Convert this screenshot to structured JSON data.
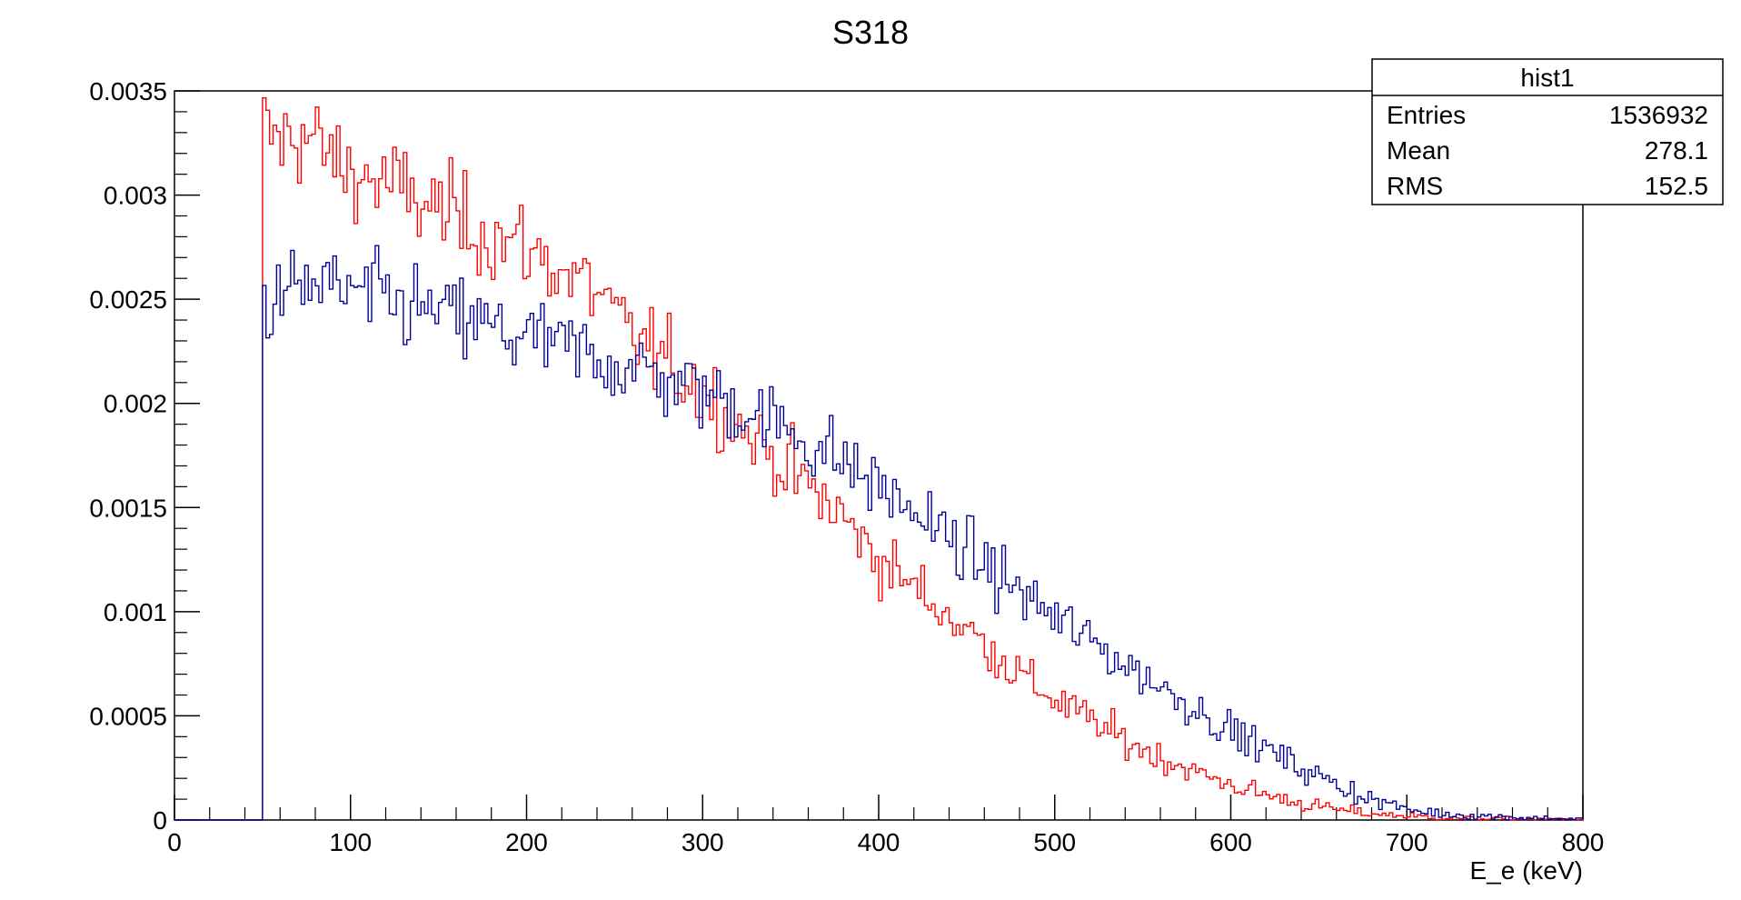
{
  "chart_data": {
    "type": "histogram",
    "title": "S318",
    "xlabel": "E_e (keV)",
    "ylabel": "",
    "xlim": [
      0,
      800
    ],
    "ylim": [
      0,
      0.0035
    ],
    "x_ticks": [
      "0",
      "100",
      "200",
      "300",
      "400",
      "500",
      "600",
      "700",
      "800"
    ],
    "y_ticks": [
      "0",
      "0.0005",
      "0.001",
      "0.0015",
      "0.002",
      "0.0025",
      "0.003",
      "0.0035"
    ],
    "grid": false,
    "bin_width": 2,
    "x_start": 50,
    "x_end": 800,
    "series": [
      {
        "color": "#ff0000",
        "points": [
          [
            50,
            0.00331
          ],
          [
            60,
            0.00325
          ],
          [
            70,
            0.0033
          ],
          [
            80,
            0.00325
          ],
          [
            90,
            0.00317
          ],
          [
            100,
            0.00311
          ],
          [
            120,
            0.00305
          ],
          [
            140,
            0.00297
          ],
          [
            160,
            0.00289
          ],
          [
            180,
            0.00281
          ],
          [
            200,
            0.00274
          ],
          [
            220,
            0.00264
          ],
          [
            240,
            0.00254
          ],
          [
            250,
            0.0024
          ],
          [
            260,
            0.00233
          ],
          [
            270,
            0.00226
          ],
          [
            280,
            0.00219
          ],
          [
            300,
            0.00206
          ],
          [
            320,
            0.0019
          ],
          [
            340,
            0.00175
          ],
          [
            360,
            0.0016
          ],
          [
            380,
            0.00145
          ],
          [
            400,
            0.00125
          ],
          [
            420,
            0.00112
          ],
          [
            440,
            0.00098
          ],
          [
            460,
            0.00085
          ],
          [
            480,
            0.0007
          ],
          [
            500,
            0.00058
          ],
          [
            520,
            0.00048
          ],
          [
            540,
            0.00038
          ],
          [
            560,
            0.0003
          ],
          [
            580,
            0.00023
          ],
          [
            600,
            0.00017
          ],
          [
            620,
            0.00012
          ],
          [
            640,
            8e-05
          ],
          [
            660,
            5e-05
          ],
          [
            680,
            3e-05
          ],
          [
            700,
            2e-05
          ],
          [
            720,
            1e-05
          ],
          [
            760,
            5e-06
          ],
          [
            800,
            3e-06
          ]
        ]
      },
      {
        "color": "#000099",
        "points": [
          [
            50,
            0.00242
          ],
          [
            60,
            0.0025
          ],
          [
            70,
            0.00255
          ],
          [
            80,
            0.00257
          ],
          [
            90,
            0.00255
          ],
          [
            100,
            0.00253
          ],
          [
            120,
            0.00249
          ],
          [
            140,
            0.00245
          ],
          [
            160,
            0.00241
          ],
          [
            180,
            0.00236
          ],
          [
            200,
            0.00231
          ],
          [
            220,
            0.00227
          ],
          [
            240,
            0.00222
          ],
          [
            260,
            0.00217
          ],
          [
            280,
            0.00212
          ],
          [
            300,
            0.00206
          ],
          [
            320,
            0.00199
          ],
          [
            340,
            0.00191
          ],
          [
            360,
            0.00182
          ],
          [
            380,
            0.00172
          ],
          [
            400,
            0.0016
          ],
          [
            420,
            0.00148
          ],
          [
            440,
            0.00135
          ],
          [
            460,
            0.00122
          ],
          [
            480,
            0.0011
          ],
          [
            500,
            0.00097
          ],
          [
            520,
            0.00086
          ],
          [
            540,
            0.00075
          ],
          [
            560,
            0.00064
          ],
          [
            580,
            0.00054
          ],
          [
            600,
            0.00043
          ],
          [
            620,
            0.00034
          ],
          [
            640,
            0.00025
          ],
          [
            660,
            0.00017
          ],
          [
            680,
            0.0001
          ],
          [
            700,
            5e-05
          ],
          [
            720,
            3e-05
          ],
          [
            740,
            2e-05
          ],
          [
            770,
            1e-05
          ],
          [
            800,
            5e-06
          ]
        ]
      }
    ],
    "stats_box": {
      "title": "hist1",
      "position": "top-right",
      "rows": [
        {
          "label": "Entries",
          "value": "1536932"
        },
        {
          "label": "Mean",
          "value": "278.1"
        },
        {
          "label": "RMS",
          "value": "152.5"
        }
      ]
    }
  }
}
